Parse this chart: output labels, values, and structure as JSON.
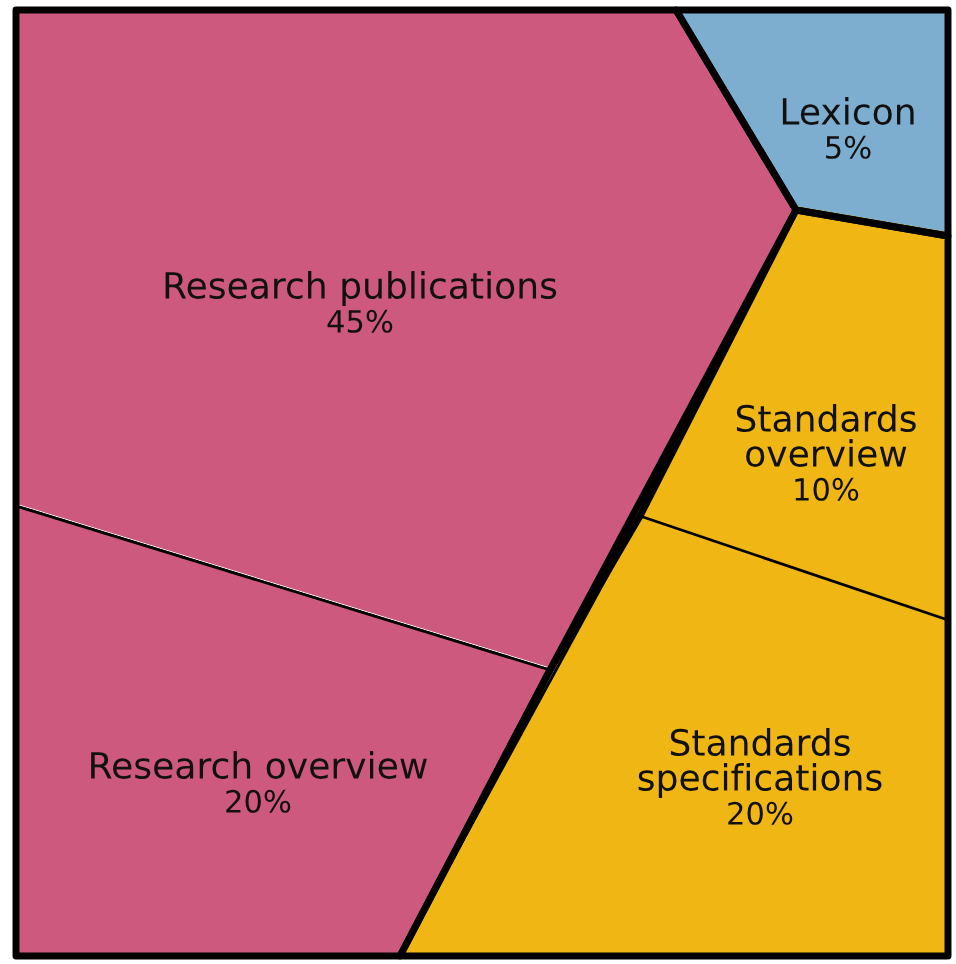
{
  "chart_data": {
    "type": "other",
    "categories": [
      "Research publications",
      "Research overview",
      "Lexicon",
      "Standards overview",
      "Standards specifications"
    ],
    "values": [
      45,
      20,
      5,
      10,
      20
    ],
    "value_labels": [
      "45%",
      "20%",
      "5%",
      "10%",
      "20%"
    ],
    "colors": [
      "#cd5a7e",
      "#cd5a7e",
      "#7eaecf",
      "#f0b614",
      "#f0b614"
    ]
  }
}
